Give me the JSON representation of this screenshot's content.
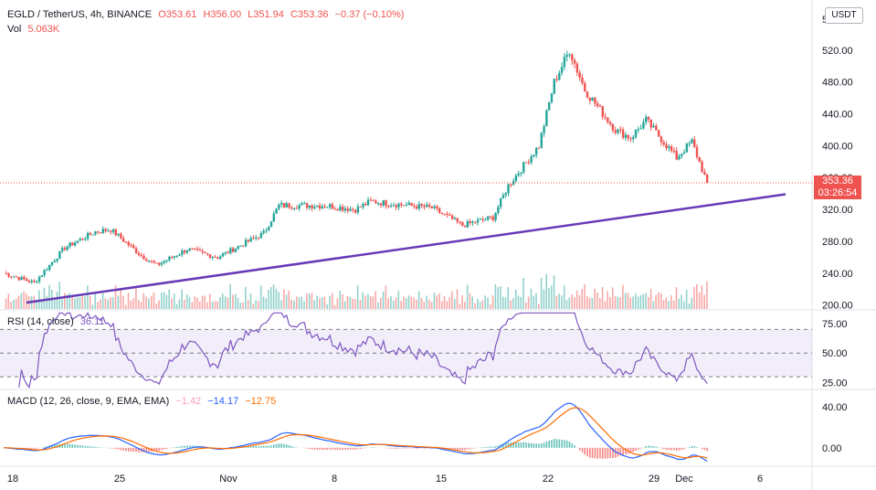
{
  "header": {
    "symbol": "EGLD / TetherUS, 4h, BINANCE",
    "open": "O353.61",
    "high": "H356.00",
    "low": "L351.94",
    "close": "C353.36",
    "change": "−0.37 (−0.10%)",
    "vol_label": "Vol",
    "vol_value": "5.063K"
  },
  "currency_button": "USDT",
  "last_price": "353.36",
  "countdown": "03:26:54",
  "rsi_header": {
    "label": "RSI (14, close)",
    "value": "36.11"
  },
  "macd_header": {
    "label": "MACD (12, 26, close, 9, EMA, EMA)",
    "hist": "−1.42",
    "macd": "−14.17",
    "signal": "−12.75"
  },
  "colors": {
    "up": "#26a69a",
    "down": "#ef5350",
    "trendline": "#673ab7",
    "rsi": "#7e57c2",
    "macd": "#2962ff",
    "signal": "#ff6d00"
  },
  "chart_data": [
    {
      "type": "candlestick",
      "yaxis_ticks": [
        200,
        240,
        280,
        320,
        360,
        400,
        440,
        480,
        520
      ],
      "xaxis_ticks": [
        "18",
        "25",
        "Nov",
        "8",
        "15",
        "22",
        "29",
        "Dec",
        "6"
      ],
      "ylim": [
        195,
        560
      ],
      "trendline": {
        "from": {
          "x": "18",
          "y": 203
        },
        "to": {
          "x": "6",
          "y": 339
        }
      },
      "series_anchor_close": [
        {
          "x": "18",
          "close": 240
        },
        {
          "x": "20",
          "close": 228
        },
        {
          "x": "22",
          "close": 272
        },
        {
          "x": "24",
          "close": 292
        },
        {
          "x": "25",
          "close": 295
        },
        {
          "x": "27",
          "close": 262
        },
        {
          "x": "28",
          "close": 250
        },
        {
          "x": "30",
          "close": 270
        },
        {
          "x": "Nov",
          "close": 260
        },
        {
          "x": "4",
          "close": 290
        },
        {
          "x": "5",
          "close": 325
        },
        {
          "x": "8",
          "close": 325
        },
        {
          "x": "10",
          "close": 320
        },
        {
          "x": "11",
          "close": 330
        },
        {
          "x": "15",
          "close": 322
        },
        {
          "x": "17",
          "close": 300
        },
        {
          "x": "19",
          "close": 310
        },
        {
          "x": "20",
          "close": 350
        },
        {
          "x": "22",
          "close": 400
        },
        {
          "x": "23",
          "close": 480
        },
        {
          "x": "24",
          "close": 520
        },
        {
          "x": "25",
          "close": 470
        },
        {
          "x": "27",
          "close": 420
        },
        {
          "x": "28",
          "close": 410
        },
        {
          "x": "29",
          "close": 432
        },
        {
          "x": "Dec",
          "close": 385
        },
        {
          "x": "2",
          "close": 405
        },
        {
          "x": "3",
          "close": 353.36
        }
      ]
    },
    {
      "type": "line",
      "name": "RSI (14, close)",
      "ylim": [
        20,
        85
      ],
      "yaxis_ticks": [
        25,
        50,
        75
      ],
      "band": [
        30,
        70
      ],
      "last": 36.11
    },
    {
      "type": "line",
      "name": "MACD (12, 26, close, 9, EMA, EMA)",
      "yaxis_ticks": [
        0,
        40
      ],
      "ylim": [
        -18,
        48
      ],
      "last": {
        "histogram": -1.42,
        "macd": -14.17,
        "signal": -12.75
      }
    }
  ]
}
